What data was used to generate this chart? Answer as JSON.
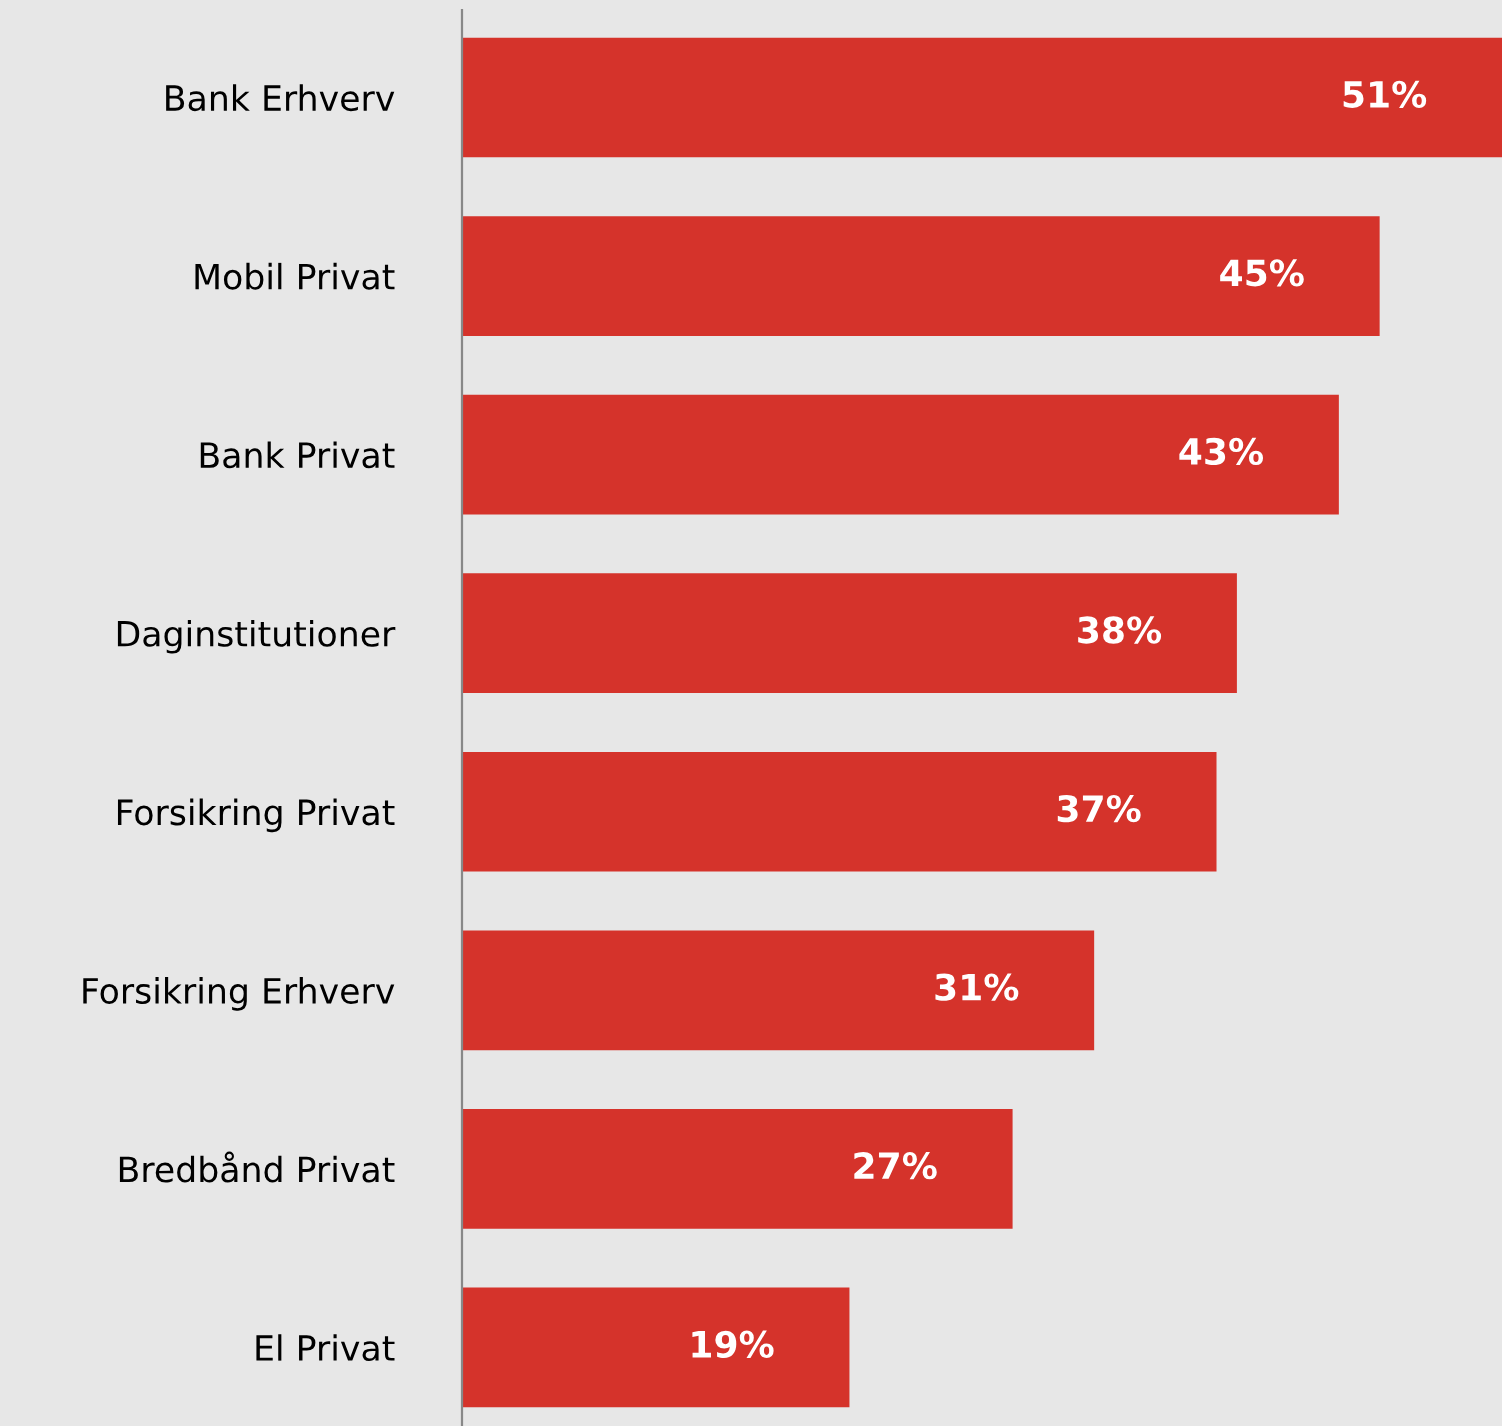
{
  "chart_data": {
    "type": "bar",
    "orientation": "horizontal",
    "categories": [
      "Bank Erhverv",
      "Mobil Privat",
      "Bank Privat",
      "Daginstitutioner",
      "Forsikring Privat",
      "Forsikring Erhverv",
      "Bredbånd Privat",
      "El Privat"
    ],
    "values": [
      51,
      45,
      43,
      38,
      37,
      31,
      27,
      19
    ],
    "value_labels": [
      "51%",
      "45%",
      "43%",
      "38%",
      "37%",
      "31%",
      "27%",
      "19%"
    ],
    "color": "#d5332b",
    "grid": false,
    "legend": false,
    "tick_labels": "y"
  }
}
